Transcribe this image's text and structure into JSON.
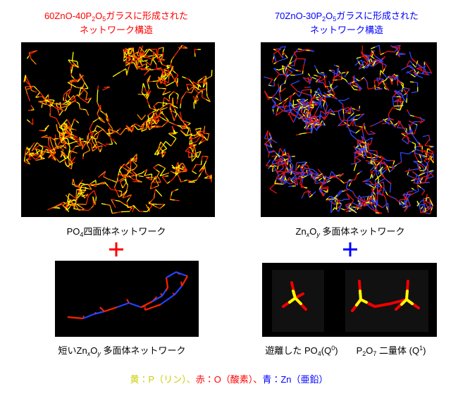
{
  "left": {
    "title_line1": [
      "60ZnO-40P",
      "2",
      "O",
      "5",
      "ガラスに形成された"
    ],
    "title_line2": "ネットワーク構造",
    "caption": [
      "PO",
      "4",
      "四面体ネットワーク"
    ],
    "sub_caption": [
      "短いZn",
      "x",
      "O",
      "y",
      " 多面体ネットワーク"
    ]
  },
  "right": {
    "title_line1": [
      "70ZnO-30P",
      "2",
      "O",
      "5",
      "ガラスに形成された"
    ],
    "title_line2": "ネットワーク構造",
    "caption": [
      "Zn",
      "x",
      "O",
      "y",
      " 多面体ネットワーク"
    ],
    "sub_caption_1": [
      "遊離した PO",
      "4",
      "(Q",
      "0",
      ")"
    ],
    "sub_caption_2": [
      "P",
      "2",
      "O",
      "7",
      " 二量体 (Q",
      "1",
      ")"
    ]
  },
  "legend": [
    "黄：P（リン）、",
    "赤：O（酸素）、",
    "青：Zn（亜鉛）"
  ]
}
